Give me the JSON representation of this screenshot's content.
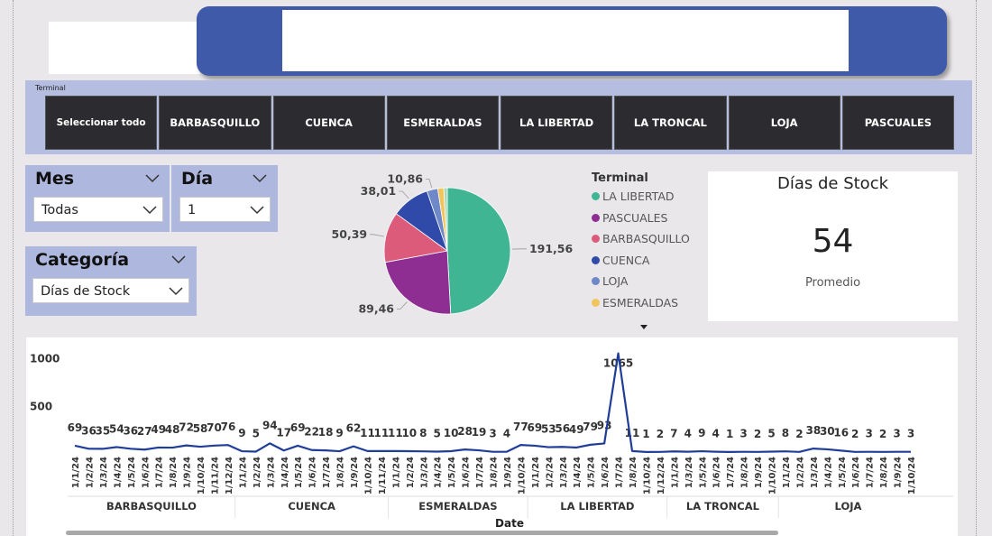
{
  "filters": {
    "terminal": {
      "title": "Terminal",
      "options": [
        "Seleccionar todo",
        "BARBASQUILLO",
        "CUENCA",
        "ESMERALDAS",
        "LA LIBERTAD",
        "LA TRONCAL",
        "LOJA",
        "PASCUALES"
      ]
    },
    "mes": {
      "label": "Mes",
      "value": "Todas"
    },
    "dia": {
      "label": "Día",
      "value": "1"
    },
    "categoria": {
      "label": "Categoría",
      "value": "Días de Stock"
    }
  },
  "card": {
    "title": "Días de Stock",
    "value": "54",
    "label": "Promedio"
  },
  "colors": {
    "accent": "#3f5aa9",
    "line": "#1f3d99"
  },
  "chart_data": [
    {
      "type": "pie",
      "legend_title": "Terminal",
      "legend_placement": "right",
      "slices": [
        {
          "label": "LA LIBERTAD",
          "value": 191.56,
          "color": "#3fb593"
        },
        {
          "label": "PASCUALES",
          "value": 89.46,
          "color": "#8e2e93"
        },
        {
          "label": "BARBASQUILLO",
          "value": 50.39,
          "color": "#dc5a7a"
        },
        {
          "label": "CUENCA",
          "value": 38.01,
          "color": "#2f4aa8"
        },
        {
          "label": "LOJA",
          "value": 10.86,
          "color": "#6e88c8"
        },
        {
          "label": "ESMERALDAS",
          "value": 6.0,
          "color": "#f2c55c"
        },
        {
          "label": "",
          "value": 3.5,
          "color": "#a8d9b7"
        }
      ],
      "data_labels": [
        "191,56",
        "89,46",
        "50,39",
        "38,01",
        "10,86"
      ]
    },
    {
      "type": "line",
      "xlabel": "Date",
      "ylabel": "",
      "ylim": [
        0,
        1100
      ],
      "yticks": [
        "1000",
        "500"
      ],
      "groups": [
        {
          "name": "BARBASQUILLO",
          "dates": [
            "1/1/24",
            "1/2/24",
            "1/3/24",
            "1/4/24",
            "1/5/24",
            "1/6/24",
            "1/7/24",
            "1/8/24",
            "1/9/24",
            "1/10/24",
            "1/11/24",
            "1/12/24"
          ],
          "values": [
            69,
            36,
            35,
            54,
            36,
            27,
            49,
            48,
            72,
            58,
            70,
            76
          ]
        },
        {
          "name": "CUENCA",
          "dates": [
            "1/1/24",
            "1/2/24",
            "1/3/24",
            "1/4/24",
            "1/5/24",
            "1/6/24",
            "1/7/24",
            "1/8/24",
            "1/9/24",
            "1/10/24",
            "1/11/24"
          ],
          "values": [
            9,
            5,
            94,
            17,
            69,
            22,
            18,
            9,
            62,
            11,
            11
          ]
        },
        {
          "name": "ESMERALDAS",
          "dates": [
            "1/1/24",
            "1/2/24",
            "1/3/24",
            "1/4/24",
            "1/5/24",
            "1/6/24",
            "1/7/24",
            "1/8/24",
            "1/9/24",
            "1/10/24"
          ],
          "values": [
            11,
            10,
            8,
            5,
            10,
            28,
            19,
            3,
            4,
            77
          ]
        },
        {
          "name": "LA LIBERTAD",
          "dates": [
            "1/1/24",
            "1/2/24",
            "1/3/24",
            "1/4/24",
            "1/5/24",
            "1/6/24",
            "1/7/24",
            "1/8/24",
            "1/10/24",
            "1/12/24"
          ],
          "values": [
            69,
            53,
            56,
            49,
            79,
            93,
            1065,
            11,
            1,
            2
          ]
        },
        {
          "name": "LA TRONCAL",
          "dates": [
            "1/1/24",
            "1/3/24",
            "1/5/24",
            "1/6/24",
            "1/7/24",
            "1/8/24",
            "1/9/24",
            "1/10/24"
          ],
          "values": [
            7,
            4,
            9,
            4,
            1,
            3,
            2,
            5
          ]
        },
        {
          "name": "LOJA",
          "dates": [
            "1/1/24",
            "1/2/24",
            "1/3/24",
            "1/4/24",
            "1/5/24",
            "1/6/24",
            "1/7/24",
            "1/8/24",
            "1/9/24",
            "1/10/24"
          ],
          "values": [
            8,
            2,
            38,
            30,
            16,
            2,
            3,
            2,
            3,
            3
          ]
        }
      ]
    }
  ]
}
